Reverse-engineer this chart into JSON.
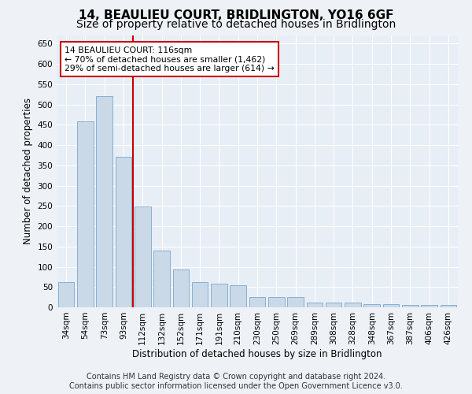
{
  "title": "14, BEAULIEU COURT, BRIDLINGTON, YO16 6GF",
  "subtitle": "Size of property relative to detached houses in Bridlington",
  "xlabel": "Distribution of detached houses by size in Bridlington",
  "ylabel": "Number of detached properties",
  "bar_color": "#c9d9e8",
  "bar_edge_color": "#7aa8c8",
  "annotation_line1": "14 BEAULIEU COURT: 116sqm",
  "annotation_line2": "← 70% of detached houses are smaller (1,462)",
  "annotation_line3": "29% of semi-detached houses are larger (614) →",
  "annotation_box_color": "#ffffff",
  "annotation_box_edge_color": "#cc0000",
  "vline_color": "#cc0000",
  "vline_x_index": 4,
  "footer_line1": "Contains HM Land Registry data © Crown copyright and database right 2024.",
  "footer_line2": "Contains public sector information licensed under the Open Government Licence v3.0.",
  "categories": [
    "34sqm",
    "54sqm",
    "73sqm",
    "93sqm",
    "112sqm",
    "132sqm",
    "152sqm",
    "171sqm",
    "191sqm",
    "210sqm",
    "230sqm",
    "250sqm",
    "269sqm",
    "289sqm",
    "308sqm",
    "328sqm",
    "348sqm",
    "367sqm",
    "387sqm",
    "406sqm",
    "426sqm"
  ],
  "values": [
    63,
    458,
    520,
    370,
    249,
    140,
    93,
    63,
    58,
    55,
    26,
    26,
    26,
    12,
    12,
    12,
    8,
    8,
    5,
    5,
    5
  ],
  "ylim": [
    0,
    670
  ],
  "yticks": [
    0,
    50,
    100,
    150,
    200,
    250,
    300,
    350,
    400,
    450,
    500,
    550,
    600,
    650
  ],
  "background_color": "#eef2f7",
  "plot_bg_color": "#e8eef6",
  "grid_color": "#ffffff",
  "title_fontsize": 11,
  "subtitle_fontsize": 10,
  "axis_label_fontsize": 8.5,
  "tick_fontsize": 7.5,
  "footer_fontsize": 7
}
